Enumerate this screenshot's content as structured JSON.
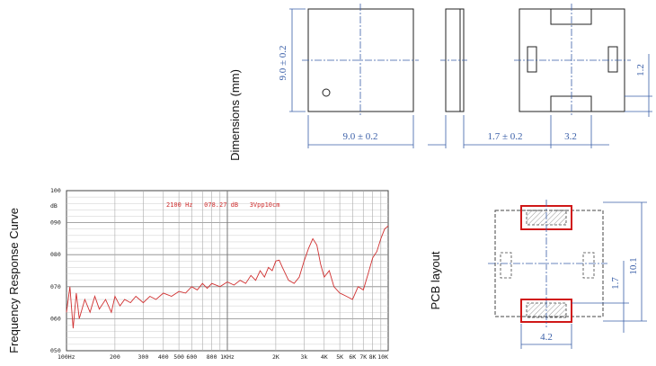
{
  "labels": {
    "dimensions": "Dimensions (mm)",
    "frequency_response": "Frequency Response Curve",
    "pcb_layout": "PCB layout"
  },
  "dimensions": {
    "height": "9.0 ± 0.2",
    "width": "9.0 ± 0.2",
    "thickness": "1.7 ± 0.2",
    "pad_width": "3.2",
    "pad_height": "1.2"
  },
  "pcb": {
    "outer": "10.1",
    "inner": "1.7",
    "pad_width": "4.2"
  },
  "colors": {
    "outline": "#222222",
    "dimension": "#3a5fa8",
    "curve": "#d03030",
    "pad_highlight": "#d01818"
  },
  "chart_data": {
    "type": "line",
    "header": "2100 Hz   078.27 dB   3Vpp10cm",
    "y_unit": "dB",
    "y_ticks": [
      "100",
      "090",
      "080",
      "070",
      "060",
      "050"
    ],
    "y_tick_values": [
      100,
      90,
      80,
      70,
      60,
      50
    ],
    "x_ticks": [
      "100Hz",
      "200",
      "300",
      "400",
      "500",
      "600",
      "800",
      "1KHz",
      "2K",
      "3k",
      "4K",
      "5K",
      "6K",
      "7K",
      "8K",
      "10K"
    ],
    "x_tick_values": [
      100,
      200,
      300,
      400,
      500,
      600,
      800,
      1000,
      2000,
      3000,
      4000,
      5000,
      6000,
      7000,
      8000,
      10000
    ],
    "x_scale": "log",
    "ylim": [
      50,
      100
    ],
    "xlim": [
      100,
      10000
    ],
    "series": [
      {
        "values": [
          [
            100,
            62
          ],
          [
            105,
            70
          ],
          [
            110,
            57
          ],
          [
            115,
            68
          ],
          [
            120,
            60
          ],
          [
            130,
            66
          ],
          [
            140,
            62
          ],
          [
            150,
            67
          ],
          [
            160,
            63
          ],
          [
            175,
            66
          ],
          [
            190,
            62
          ],
          [
            200,
            67
          ],
          [
            215,
            64
          ],
          [
            230,
            66
          ],
          [
            250,
            65
          ],
          [
            270,
            67
          ],
          [
            300,
            65
          ],
          [
            330,
            67
          ],
          [
            360,
            66
          ],
          [
            400,
            68
          ],
          [
            450,
            67
          ],
          [
            500,
            68.5
          ],
          [
            550,
            68
          ],
          [
            600,
            70
          ],
          [
            650,
            69
          ],
          [
            700,
            71
          ],
          [
            750,
            69.5
          ],
          [
            800,
            71
          ],
          [
            900,
            70
          ],
          [
            1000,
            71.5
          ],
          [
            1100,
            70.5
          ],
          [
            1200,
            72
          ],
          [
            1300,
            71
          ],
          [
            1400,
            73.5
          ],
          [
            1500,
            72
          ],
          [
            1600,
            75
          ],
          [
            1700,
            73
          ],
          [
            1800,
            76
          ],
          [
            1900,
            75
          ],
          [
            2000,
            78
          ],
          [
            2100,
            78.3
          ],
          [
            2200,
            76
          ],
          [
            2400,
            72
          ],
          [
            2600,
            71
          ],
          [
            2800,
            73
          ],
          [
            3000,
            78
          ],
          [
            3200,
            82
          ],
          [
            3400,
            85
          ],
          [
            3600,
            83
          ],
          [
            3800,
            77
          ],
          [
            4000,
            73
          ],
          [
            4300,
            75
          ],
          [
            4600,
            70
          ],
          [
            5000,
            68
          ],
          [
            5500,
            67
          ],
          [
            6000,
            66
          ],
          [
            6500,
            70
          ],
          [
            7000,
            69
          ],
          [
            7500,
            74
          ],
          [
            8000,
            79
          ],
          [
            8500,
            81
          ],
          [
            9000,
            85
          ],
          [
            9500,
            88
          ],
          [
            10000,
            89
          ]
        ]
      }
    ]
  }
}
